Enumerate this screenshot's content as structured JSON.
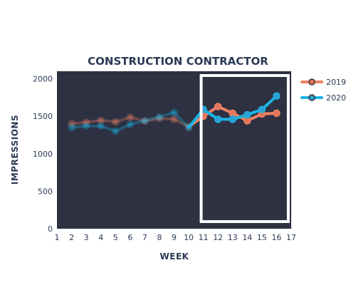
{
  "chart_data": {
    "type": "line",
    "title": "CONSTRUCTION CONTRACTOR",
    "xlabel": "WEEK",
    "ylabel": "IMPRESSIONS",
    "xlim": [
      1,
      17
    ],
    "ylim": [
      0,
      2100
    ],
    "x_ticks": [
      "1",
      "2",
      "3",
      "4",
      "5",
      "6",
      "7",
      "8",
      "9",
      "10",
      "11",
      "12",
      "13",
      "14",
      "15",
      "16",
      "17"
    ],
    "y_ticks": [
      "0",
      "500",
      "1000",
      "1500",
      "2000"
    ],
    "grid": false,
    "legend": "top-right",
    "plot_background": "#2d3142",
    "highlight": {
      "x_start": 10.85,
      "x_end": 16.8,
      "color": "#ffffff"
    },
    "series": [
      {
        "name": "2019",
        "color": "#f08266",
        "marker_face": "#e57358",
        "faded_until_x": 10,
        "x": [
          2,
          3,
          4,
          5,
          6,
          7,
          8,
          9,
          10,
          11,
          12,
          13,
          14,
          15,
          16
        ],
        "y": [
          1400,
          1420,
          1445,
          1425,
          1485,
          1435,
          1470,
          1460,
          1360,
          1500,
          1630,
          1540,
          1440,
          1530,
          1540
        ]
      },
      {
        "name": "2020",
        "color": "#1bb5e6",
        "marker_face": "#2ea0cf",
        "faded_until_x": 10,
        "x": [
          2,
          3,
          4,
          5,
          6,
          7,
          8,
          9,
          10,
          11,
          12,
          13,
          14,
          15,
          16
        ],
        "y": [
          1350,
          1370,
          1370,
          1300,
          1390,
          1440,
          1490,
          1550,
          1350,
          1590,
          1460,
          1460,
          1520,
          1590,
          1770
        ]
      }
    ]
  }
}
